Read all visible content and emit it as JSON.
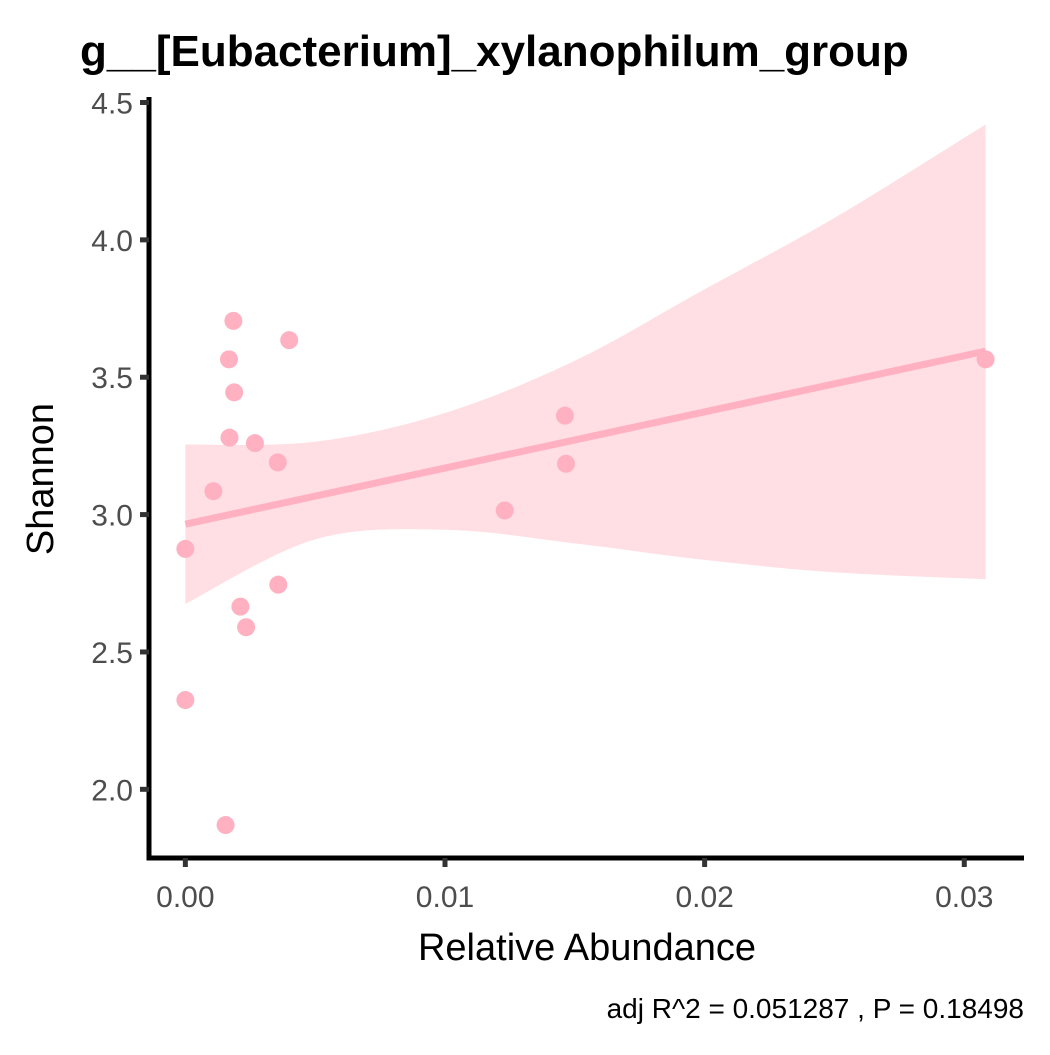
{
  "chart_data": {
    "type": "scatter",
    "title": "g__[Eubacterium]_xylanophilum_group",
    "xlabel": "Relative Abundance",
    "ylabel": "Shannon",
    "xlim": [
      -0.0014,
      0.0323
    ],
    "ylim": [
      1.75,
      4.52
    ],
    "x_ticks": [
      0,
      0.01,
      0.02,
      0.03
    ],
    "x_tick_labels": [
      "0.00",
      "0.01",
      "0.02",
      "0.03"
    ],
    "y_ticks": [
      2.0,
      2.5,
      3.0,
      3.5,
      4.0,
      4.5
    ],
    "y_tick_labels": [
      "2.0",
      "2.5",
      "3.0",
      "3.5",
      "4.0",
      "4.5"
    ],
    "grid": false,
    "legend": "none",
    "annotation": "adj R^2 =  0.051287 , P = 0.18498",
    "colors": {
      "points": "#ffb1c1",
      "fit_line": "#ffb1c1",
      "confidence_band": "#ffdee4",
      "axis": "#000000",
      "tick_labels": "#4d4d4d"
    },
    "points": [
      {
        "x": 0.0,
        "y": 2.875
      },
      {
        "x": 0.0,
        "y": 2.325
      },
      {
        "x": 0.00108,
        "y": 3.085
      },
      {
        "x": 0.00155,
        "y": 1.87
      },
      {
        "x": 0.00168,
        "y": 3.565
      },
      {
        "x": 0.0017,
        "y": 3.28
      },
      {
        "x": 0.00185,
        "y": 3.705
      },
      {
        "x": 0.00188,
        "y": 3.445
      },
      {
        "x": 0.00212,
        "y": 2.665
      },
      {
        "x": 0.00234,
        "y": 2.59
      },
      {
        "x": 0.00268,
        "y": 3.26
      },
      {
        "x": 0.00356,
        "y": 3.19
      },
      {
        "x": 0.00358,
        "y": 2.745
      },
      {
        "x": 0.004,
        "y": 3.635
      },
      {
        "x": 0.0123,
        "y": 3.015
      },
      {
        "x": 0.01462,
        "y": 3.36
      },
      {
        "x": 0.01466,
        "y": 3.185
      },
      {
        "x": 0.03082,
        "y": 3.565
      }
    ],
    "fit_line": {
      "x": [
        0.0,
        0.03082
      ],
      "y": [
        2.965,
        3.595
      ]
    },
    "confidence_band": {
      "x": [
        0.0,
        0.005,
        0.01,
        0.015,
        0.02,
        0.025,
        0.03082
      ],
      "lower": [
        2.675,
        2.91,
        2.945,
        2.895,
        2.835,
        2.79,
        2.765
      ],
      "upper": [
        3.255,
        3.265,
        3.37,
        3.56,
        3.82,
        4.08,
        4.42
      ]
    }
  }
}
